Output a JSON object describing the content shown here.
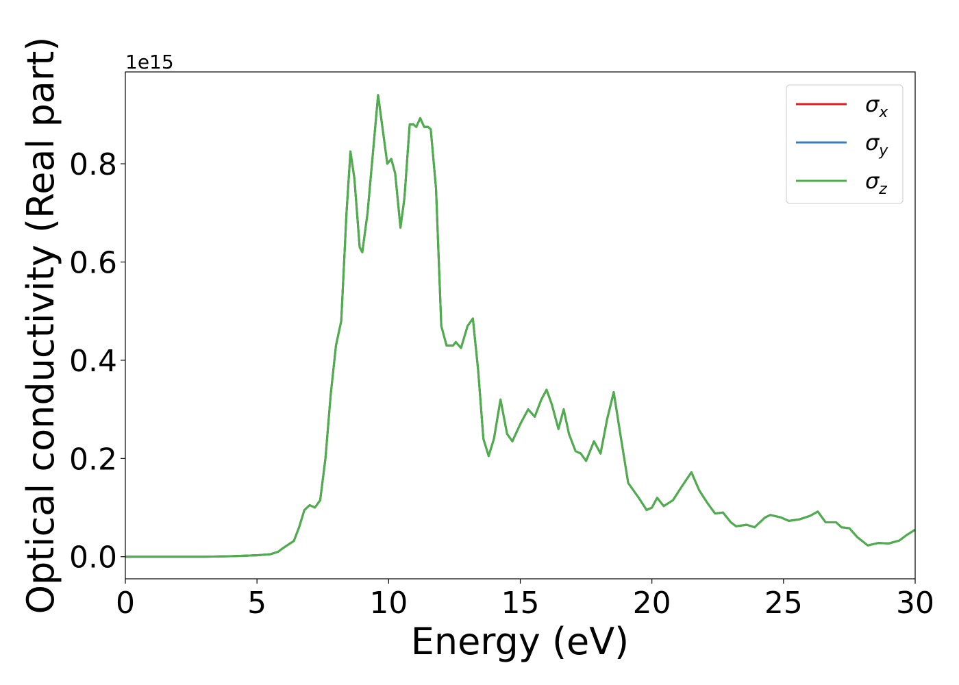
{
  "chart_data": {
    "type": "line",
    "x_label": "Energy (eV)",
    "y_label": "Optical conductivity (Real part)",
    "y_offset_label": "1e15",
    "x": [
      0,
      1,
      2,
      3,
      4,
      5,
      5.5,
      5.8,
      6.0,
      6.2,
      6.4,
      6.6,
      6.8,
      7.0,
      7.2,
      7.4,
      7.6,
      7.8,
      8.0,
      8.2,
      8.4,
      8.55,
      8.7,
      8.9,
      9.0,
      9.2,
      9.4,
      9.6,
      9.75,
      9.95,
      10.1,
      10.25,
      10.45,
      10.6,
      10.8,
      10.95,
      11.05,
      11.2,
      11.35,
      11.5,
      11.6,
      11.8,
      12.0,
      12.2,
      12.45,
      12.55,
      12.75,
      13.0,
      13.2,
      13.4,
      13.6,
      13.8,
      14.0,
      14.25,
      14.5,
      14.7,
      15.0,
      15.3,
      15.55,
      15.8,
      16.0,
      16.2,
      16.45,
      16.65,
      16.85,
      17.1,
      17.3,
      17.5,
      17.8,
      18.05,
      18.3,
      18.55,
      18.8,
      19.1,
      19.5,
      19.8,
      20.0,
      20.2,
      20.45,
      20.8,
      21.1,
      21.5,
      21.8,
      22.1,
      22.4,
      22.7,
      23.0,
      23.2,
      23.6,
      23.9,
      24.3,
      24.5,
      24.9,
      25.2,
      25.6,
      26.0,
      26.3,
      26.6,
      27.0,
      27.2,
      27.5,
      27.8,
      28.2,
      28.6,
      29.0,
      29.4,
      29.7,
      30.0
    ],
    "series": [
      {
        "name": "σx",
        "color": "#e41a1c",
        "values": [
          0,
          0,
          0,
          0,
          0.001,
          0.003,
          0.005,
          0.01,
          0.018,
          0.025,
          0.032,
          0.06,
          0.095,
          0.105,
          0.1,
          0.115,
          0.2,
          0.33,
          0.43,
          0.48,
          0.7,
          0.825,
          0.77,
          0.63,
          0.62,
          0.7,
          0.82,
          0.94,
          0.88,
          0.8,
          0.81,
          0.78,
          0.67,
          0.73,
          0.88,
          0.88,
          0.875,
          0.893,
          0.875,
          0.875,
          0.87,
          0.75,
          0.47,
          0.43,
          0.43,
          0.437,
          0.425,
          0.47,
          0.485,
          0.38,
          0.24,
          0.205,
          0.24,
          0.32,
          0.25,
          0.235,
          0.27,
          0.3,
          0.285,
          0.32,
          0.34,
          0.31,
          0.26,
          0.3,
          0.25,
          0.215,
          0.21,
          0.195,
          0.235,
          0.21,
          0.28,
          0.335,
          0.25,
          0.15,
          0.12,
          0.095,
          0.1,
          0.12,
          0.103,
          0.115,
          0.14,
          0.172,
          0.135,
          0.11,
          0.088,
          0.09,
          0.07,
          0.062,
          0.065,
          0.06,
          0.08,
          0.085,
          0.08,
          0.073,
          0.076,
          0.083,
          0.092,
          0.07,
          0.07,
          0.06,
          0.058,
          0.04,
          0.023,
          0.028,
          0.027,
          0.033,
          0.045,
          0.055
        ]
      },
      {
        "name": "σy",
        "color": "#377eb8",
        "values": [
          0,
          0,
          0,
          0,
          0.001,
          0.003,
          0.005,
          0.01,
          0.018,
          0.025,
          0.032,
          0.06,
          0.095,
          0.105,
          0.1,
          0.115,
          0.2,
          0.33,
          0.43,
          0.48,
          0.7,
          0.825,
          0.77,
          0.63,
          0.62,
          0.7,
          0.82,
          0.94,
          0.88,
          0.8,
          0.81,
          0.78,
          0.67,
          0.73,
          0.88,
          0.88,
          0.875,
          0.893,
          0.875,
          0.875,
          0.87,
          0.75,
          0.47,
          0.43,
          0.43,
          0.437,
          0.425,
          0.47,
          0.485,
          0.38,
          0.24,
          0.205,
          0.24,
          0.32,
          0.25,
          0.235,
          0.27,
          0.3,
          0.285,
          0.32,
          0.34,
          0.31,
          0.26,
          0.3,
          0.25,
          0.215,
          0.21,
          0.195,
          0.235,
          0.21,
          0.28,
          0.335,
          0.25,
          0.15,
          0.12,
          0.095,
          0.1,
          0.12,
          0.103,
          0.115,
          0.14,
          0.172,
          0.135,
          0.11,
          0.088,
          0.09,
          0.07,
          0.062,
          0.065,
          0.06,
          0.08,
          0.085,
          0.08,
          0.073,
          0.076,
          0.083,
          0.092,
          0.07,
          0.07,
          0.06,
          0.058,
          0.04,
          0.023,
          0.028,
          0.027,
          0.033,
          0.045,
          0.055
        ]
      },
      {
        "name": "σz",
        "color": "#4daf4a",
        "values": [
          0,
          0,
          0,
          0,
          0.001,
          0.003,
          0.005,
          0.01,
          0.018,
          0.025,
          0.032,
          0.06,
          0.095,
          0.105,
          0.1,
          0.115,
          0.2,
          0.33,
          0.43,
          0.48,
          0.7,
          0.825,
          0.77,
          0.63,
          0.62,
          0.7,
          0.82,
          0.94,
          0.88,
          0.8,
          0.81,
          0.78,
          0.67,
          0.73,
          0.88,
          0.88,
          0.875,
          0.893,
          0.875,
          0.875,
          0.87,
          0.75,
          0.47,
          0.43,
          0.43,
          0.437,
          0.425,
          0.47,
          0.485,
          0.38,
          0.24,
          0.205,
          0.24,
          0.32,
          0.25,
          0.235,
          0.27,
          0.3,
          0.285,
          0.32,
          0.34,
          0.31,
          0.26,
          0.3,
          0.25,
          0.215,
          0.21,
          0.195,
          0.235,
          0.21,
          0.28,
          0.335,
          0.25,
          0.15,
          0.12,
          0.095,
          0.1,
          0.12,
          0.103,
          0.115,
          0.14,
          0.172,
          0.135,
          0.11,
          0.088,
          0.09,
          0.07,
          0.062,
          0.065,
          0.06,
          0.08,
          0.085,
          0.08,
          0.073,
          0.076,
          0.083,
          0.092,
          0.07,
          0.07,
          0.06,
          0.058,
          0.04,
          0.023,
          0.028,
          0.027,
          0.033,
          0.045,
          0.055
        ]
      }
    ],
    "xlim": [
      0,
      30
    ],
    "xticks": [
      0,
      5,
      10,
      15,
      20,
      25,
      30
    ],
    "ylim": [
      -0.045,
      0.987
    ],
    "yticks": [
      {
        "value": 0,
        "label": "0.0"
      },
      0.2,
      0.4,
      0.6,
      0.8
    ],
    "grid": false,
    "legend": "upper right"
  }
}
